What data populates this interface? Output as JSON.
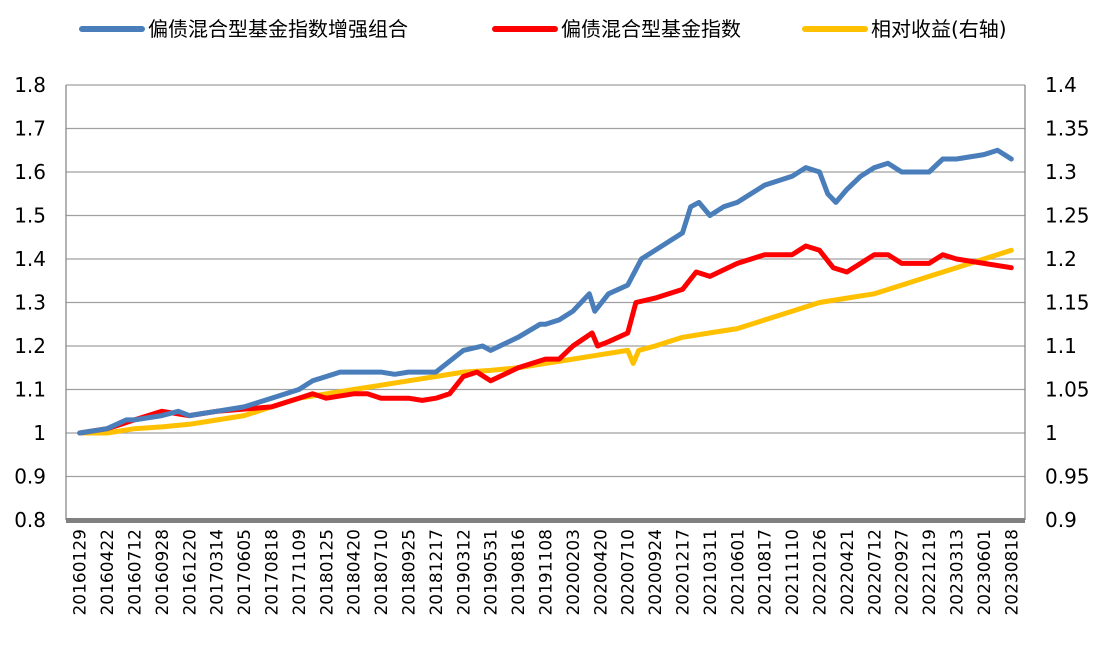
{
  "chart_data": {
    "type": "line",
    "title": "",
    "colors": {
      "enhanced": "#4a7ebb",
      "index": "#ff0000",
      "relative": "#ffc000",
      "grid": "#a0a0a0",
      "axis": "#808080"
    },
    "legend": {
      "placement": "top",
      "items": [
        {
          "key": "enhanced",
          "label": "偏债混合型基金指数增强组合"
        },
        {
          "key": "index",
          "label": "偏债混合型基金指数"
        },
        {
          "key": "relative",
          "label": "相对收益(右轴)"
        }
      ]
    },
    "y_left": {
      "min": 0.8,
      "max": 1.8,
      "ticks": [
        "0.8",
        "0.9",
        "1",
        "1.1",
        "1.2",
        "1.3",
        "1.4",
        "1.5",
        "1.6",
        "1.7",
        "1.8"
      ]
    },
    "y_right": {
      "min": 0.9,
      "max": 1.4,
      "ticks": [
        "0.9",
        "0.95",
        "1",
        "1.05",
        "1.1",
        "1.15",
        "1.2",
        "1.25",
        "1.3",
        "1.35",
        "1.4"
      ]
    },
    "grid": true,
    "categories": [
      "20160129",
      "20160422",
      "20160712",
      "20160928",
      "20161220",
      "20170314",
      "20170605",
      "20170818",
      "20171109",
      "20180125",
      "20180420",
      "20180710",
      "20180925",
      "20181217",
      "20190312",
      "20190531",
      "20190816",
      "20191108",
      "20200203",
      "20200420",
      "20200710",
      "20200924",
      "20201217",
      "20210311",
      "20210601",
      "20210817",
      "20211110",
      "20220126",
      "20220421",
      "20220712",
      "20220927",
      "20221219",
      "20230313",
      "20230601",
      "20230818"
    ],
    "series": [
      {
        "key": "enhanced",
        "name": "偏债混合型基金指数增强组合",
        "axis": "left",
        "points": [
          [
            0,
            1.0
          ],
          [
            1,
            1.01
          ],
          [
            1.7,
            1.03
          ],
          [
            2,
            1.03
          ],
          [
            3,
            1.04
          ],
          [
            3.6,
            1.05
          ],
          [
            4,
            1.04
          ],
          [
            4.5,
            1.045
          ],
          [
            5,
            1.05
          ],
          [
            6,
            1.06
          ],
          [
            7,
            1.08
          ],
          [
            8,
            1.1
          ],
          [
            8.5,
            1.12
          ],
          [
            9,
            1.13
          ],
          [
            9.5,
            1.14
          ],
          [
            10,
            1.14
          ],
          [
            11,
            1.14
          ],
          [
            11.5,
            1.135
          ],
          [
            12,
            1.14
          ],
          [
            13,
            1.14
          ],
          [
            14,
            1.19
          ],
          [
            14.7,
            1.2
          ],
          [
            15,
            1.19
          ],
          [
            16,
            1.22
          ],
          [
            16.8,
            1.25
          ],
          [
            17,
            1.25
          ],
          [
            17.5,
            1.26
          ],
          [
            18,
            1.28
          ],
          [
            18.6,
            1.32
          ],
          [
            18.8,
            1.28
          ],
          [
            19.3,
            1.32
          ],
          [
            20,
            1.34
          ],
          [
            20.5,
            1.4
          ],
          [
            21,
            1.42
          ],
          [
            22,
            1.46
          ],
          [
            22.3,
            1.52
          ],
          [
            22.6,
            1.53
          ],
          [
            23,
            1.5
          ],
          [
            23.5,
            1.52
          ],
          [
            24,
            1.53
          ],
          [
            25,
            1.57
          ],
          [
            26,
            1.59
          ],
          [
            26.5,
            1.61
          ],
          [
            27,
            1.6
          ],
          [
            27.3,
            1.55
          ],
          [
            27.6,
            1.53
          ],
          [
            28,
            1.56
          ],
          [
            28.5,
            1.59
          ],
          [
            29,
            1.61
          ],
          [
            29.5,
            1.62
          ],
          [
            30,
            1.6
          ],
          [
            31,
            1.6
          ],
          [
            31.5,
            1.63
          ],
          [
            32,
            1.63
          ],
          [
            33,
            1.64
          ],
          [
            33.5,
            1.65
          ],
          [
            34,
            1.63
          ]
        ]
      },
      {
        "key": "index",
        "name": "偏债混合型基金指数",
        "axis": "left",
        "points": [
          [
            0,
            1.0
          ],
          [
            1,
            1.01
          ],
          [
            2,
            1.03
          ],
          [
            3,
            1.05
          ],
          [
            4,
            1.04
          ],
          [
            5,
            1.05
          ],
          [
            7,
            1.06
          ],
          [
            8,
            1.08
          ],
          [
            8.5,
            1.09
          ],
          [
            9,
            1.08
          ],
          [
            10,
            1.09
          ],
          [
            10.5,
            1.09
          ],
          [
            11,
            1.08
          ],
          [
            12,
            1.08
          ],
          [
            12.5,
            1.075
          ],
          [
            13,
            1.08
          ],
          [
            13.5,
            1.09
          ],
          [
            14,
            1.13
          ],
          [
            14.5,
            1.14
          ],
          [
            15,
            1.12
          ],
          [
            16,
            1.15
          ],
          [
            17,
            1.17
          ],
          [
            17.5,
            1.17
          ],
          [
            18,
            1.2
          ],
          [
            18.7,
            1.23
          ],
          [
            18.9,
            1.2
          ],
          [
            19.3,
            1.21
          ],
          [
            20,
            1.23
          ],
          [
            20.3,
            1.3
          ],
          [
            21,
            1.31
          ],
          [
            22,
            1.33
          ],
          [
            22.5,
            1.37
          ],
          [
            23,
            1.36
          ],
          [
            24,
            1.39
          ],
          [
            25,
            1.41
          ],
          [
            26,
            1.41
          ],
          [
            26.5,
            1.43
          ],
          [
            27,
            1.42
          ],
          [
            27.5,
            1.38
          ],
          [
            28,
            1.37
          ],
          [
            28.5,
            1.39
          ],
          [
            29,
            1.41
          ],
          [
            29.5,
            1.41
          ],
          [
            30,
            1.39
          ],
          [
            31,
            1.39
          ],
          [
            31.5,
            1.41
          ],
          [
            32,
            1.4
          ],
          [
            33,
            1.39
          ],
          [
            34,
            1.38
          ]
        ]
      },
      {
        "key": "relative",
        "name": "相对收益(右轴)",
        "axis": "right",
        "points": [
          [
            0,
            1.0
          ],
          [
            1,
            1.0
          ],
          [
            2,
            1.005
          ],
          [
            3,
            1.007
          ],
          [
            4,
            1.01
          ],
          [
            5,
            1.015
          ],
          [
            6,
            1.02
          ],
          [
            7,
            1.03
          ],
          [
            8,
            1.04
          ],
          [
            9,
            1.045
          ],
          [
            10,
            1.05
          ],
          [
            11,
            1.055
          ],
          [
            12,
            1.06
          ],
          [
            13,
            1.065
          ],
          [
            14,
            1.07
          ],
          [
            15,
            1.072
          ],
          [
            16,
            1.075
          ],
          [
            17,
            1.08
          ],
          [
            18,
            1.085
          ],
          [
            19,
            1.09
          ],
          [
            20,
            1.095
          ],
          [
            20.2,
            1.08
          ],
          [
            20.4,
            1.095
          ],
          [
            21,
            1.1
          ],
          [
            22,
            1.11
          ],
          [
            23,
            1.115
          ],
          [
            24,
            1.12
          ],
          [
            25,
            1.13
          ],
          [
            26,
            1.14
          ],
          [
            27,
            1.15
          ],
          [
            28,
            1.155
          ],
          [
            29,
            1.16
          ],
          [
            30,
            1.17
          ],
          [
            31,
            1.18
          ],
          [
            32,
            1.19
          ],
          [
            33,
            1.2
          ],
          [
            34,
            1.21
          ]
        ]
      }
    ]
  }
}
